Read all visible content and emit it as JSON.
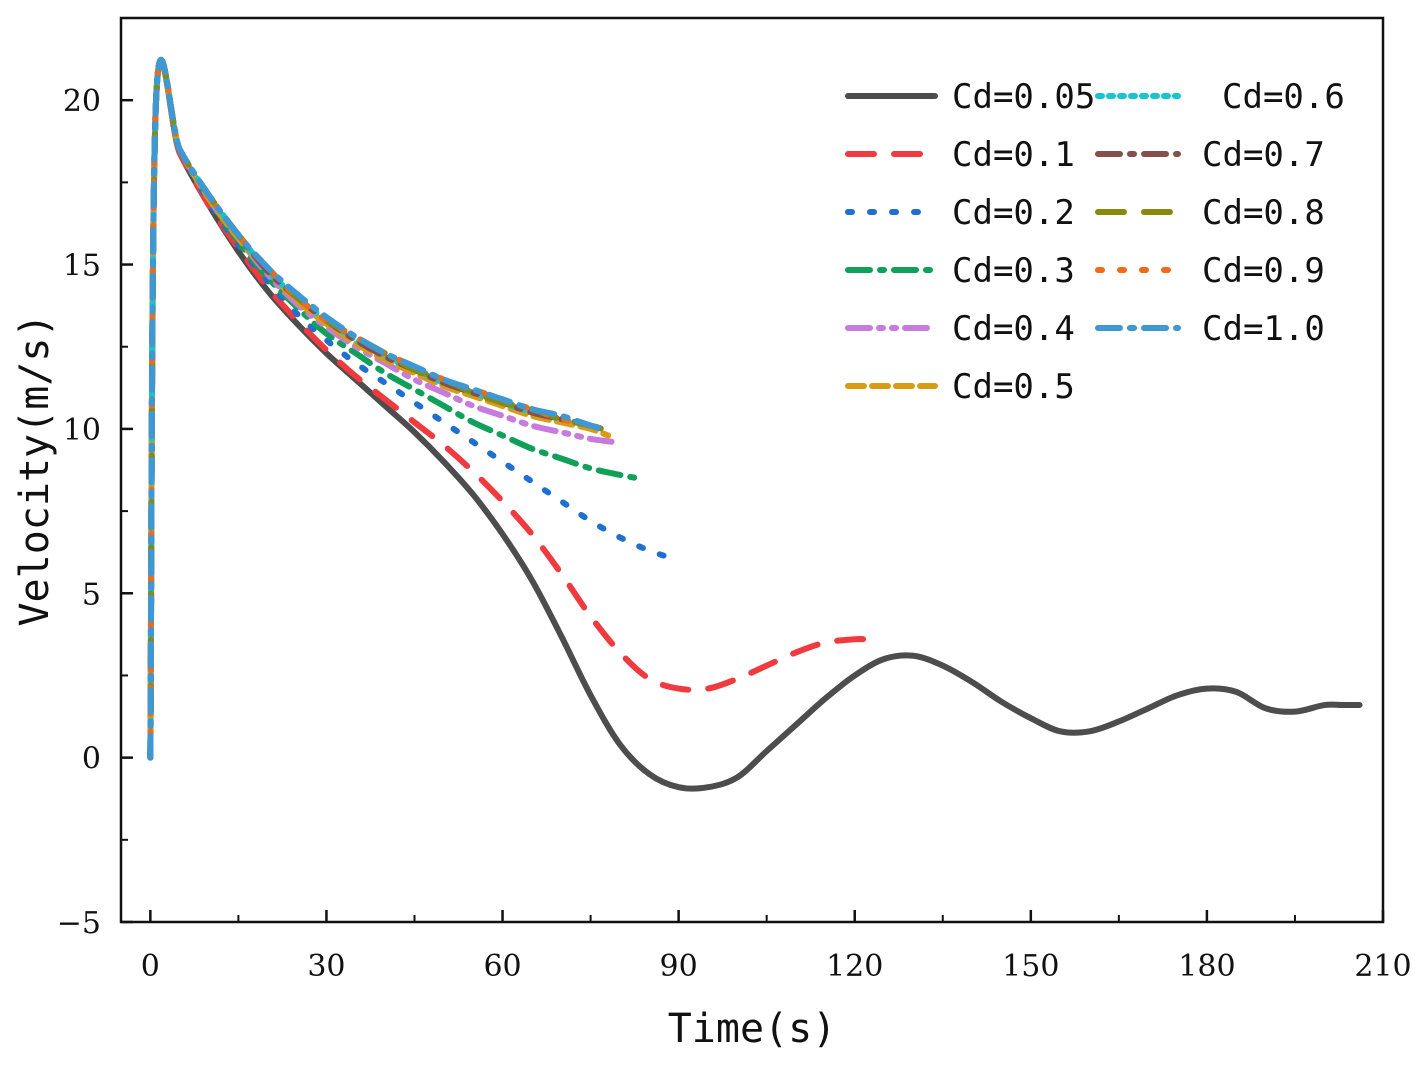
{
  "chart_data": {
    "type": "line",
    "title": "",
    "xlabel": "Time(s)",
    "ylabel": "Velocity(m/s)",
    "xlim": [
      -5,
      210
    ],
    "ylim": [
      -5,
      22.5
    ],
    "xticks": [
      0,
      30,
      60,
      90,
      120,
      150,
      180,
      210
    ],
    "xtick_labels": [
      "0",
      "30",
      "60",
      "90",
      "120",
      "150",
      "180",
      "210"
    ],
    "yticks": [
      -5,
      0,
      5,
      10,
      15,
      20
    ],
    "ytick_labels": [
      "−5",
      "0",
      "5",
      "10",
      "15",
      "20"
    ],
    "grid": false,
    "legend_position": "top-right",
    "series": [
      {
        "name": "Cd=0.05",
        "color": "#4d4d4d",
        "dash": "solid",
        "x": [
          0,
          1,
          5,
          10,
          15,
          20,
          25,
          30,
          35,
          40,
          45,
          50,
          55,
          60,
          65,
          70,
          75,
          80,
          85,
          90,
          95,
          100,
          105,
          110,
          115,
          120,
          125,
          130,
          135,
          140,
          145,
          150,
          155,
          160,
          165,
          170,
          175,
          180,
          185,
          190,
          195,
          200,
          203,
          206
        ],
        "y": [
          0,
          20.1,
          18.4,
          16.8,
          15.4,
          14.2,
          13.2,
          12.3,
          11.5,
          10.7,
          9.9,
          9.0,
          8.0,
          6.8,
          5.4,
          3.7,
          1.9,
          0.4,
          -0.5,
          -0.9,
          -0.9,
          -0.6,
          0.2,
          1.0,
          1.8,
          2.5,
          3.0,
          3.1,
          2.8,
          2.3,
          1.7,
          1.2,
          0.8,
          0.8,
          1.1,
          1.5,
          1.9,
          2.1,
          2.0,
          1.5,
          1.4,
          1.6,
          1.6,
          1.6
        ]
      },
      {
        "name": "Cd=0.1",
        "color": "#ef3b3f",
        "dash": "long",
        "x": [
          0,
          1,
          5,
          10,
          15,
          20,
          25,
          30,
          35,
          40,
          45,
          50,
          55,
          60,
          65,
          70,
          75,
          80,
          85,
          90,
          95,
          100,
          105,
          110,
          115,
          120,
          122
        ],
        "y": [
          0,
          20.1,
          18.4,
          16.8,
          15.5,
          14.3,
          13.3,
          12.4,
          11.6,
          10.9,
          10.2,
          9.5,
          8.7,
          7.8,
          6.8,
          5.6,
          4.3,
          3.2,
          2.4,
          2.1,
          2.1,
          2.4,
          2.8,
          3.2,
          3.5,
          3.6,
          3.6
        ]
      },
      {
        "name": "Cd=0.2",
        "color": "#1f6fd1",
        "dash": "dotbig",
        "x": [
          0,
          1,
          5,
          10,
          15,
          20,
          25,
          30,
          35,
          40,
          45,
          50,
          55,
          60,
          65,
          70,
          75,
          80,
          85,
          90
        ],
        "y": [
          0,
          20.1,
          18.5,
          16.9,
          15.6,
          14.5,
          13.5,
          12.7,
          12.0,
          11.4,
          10.8,
          10.2,
          9.6,
          9.0,
          8.4,
          7.8,
          7.2,
          6.7,
          6.3,
          6.0
        ]
      },
      {
        "name": "Cd=0.3",
        "color": "#10a05a",
        "dash": "dashdot",
        "x": [
          0,
          1,
          5,
          10,
          15,
          20,
          25,
          30,
          35,
          40,
          45,
          50,
          55,
          60,
          65,
          70,
          75,
          80,
          83
        ],
        "y": [
          0,
          20.1,
          18.5,
          17.0,
          15.7,
          14.6,
          13.7,
          12.9,
          12.3,
          11.7,
          11.2,
          10.7,
          10.2,
          9.8,
          9.4,
          9.1,
          8.8,
          8.6,
          8.5
        ]
      },
      {
        "name": "Cd=0.4",
        "color": "#c77bdf",
        "dash": "dashdotdot",
        "x": [
          0,
          1,
          5,
          10,
          15,
          20,
          25,
          30,
          35,
          40,
          45,
          50,
          55,
          60,
          65,
          70,
          75,
          79
        ],
        "y": [
          0,
          20.1,
          18.5,
          17.0,
          15.8,
          14.7,
          13.8,
          13.1,
          12.5,
          12.0,
          11.5,
          11.1,
          10.7,
          10.4,
          10.1,
          9.9,
          9.7,
          9.6
        ]
      },
      {
        "name": "Cd=0.5",
        "color": "#d99b14",
        "dash": "short",
        "x": [
          0,
          1,
          5,
          10,
          15,
          20,
          25,
          30,
          35,
          40,
          45,
          50,
          55,
          60,
          65,
          70,
          75,
          78
        ],
        "y": [
          0,
          20.1,
          18.5,
          17.0,
          15.8,
          14.8,
          13.9,
          13.2,
          12.6,
          12.1,
          11.7,
          11.3,
          11.0,
          10.7,
          10.4,
          10.2,
          10.0,
          9.8
        ]
      },
      {
        "name": "Cd=0.6",
        "color": "#17c4cf",
        "dash": "dotted",
        "x": [
          0,
          1,
          5,
          10,
          15,
          20,
          25,
          30,
          35,
          40,
          45,
          50,
          55,
          60,
          65,
          70,
          75,
          77
        ],
        "y": [
          0,
          20.1,
          18.5,
          17.1,
          15.9,
          14.8,
          14.0,
          13.3,
          12.7,
          12.2,
          11.8,
          11.4,
          11.1,
          10.8,
          10.5,
          10.3,
          10.1,
          10.0
        ]
      },
      {
        "name": "Cd=0.7",
        "color": "#86504a",
        "dash": "dashdot",
        "x": [
          0,
          1,
          5,
          10,
          15,
          20,
          25,
          30,
          35,
          40,
          45,
          50,
          55,
          60,
          65,
          70,
          75,
          77
        ],
        "y": [
          0,
          20.1,
          18.5,
          17.1,
          15.9,
          14.8,
          14.0,
          13.3,
          12.7,
          12.2,
          11.8,
          11.4,
          11.1,
          10.8,
          10.5,
          10.3,
          10.1,
          10.0
        ]
      },
      {
        "name": "Cd=0.8",
        "color": "#888a0c",
        "dash": "long",
        "x": [
          0,
          1,
          5,
          10,
          15,
          20,
          25,
          30,
          35,
          40,
          45,
          50,
          55,
          60,
          65,
          70,
          75,
          77
        ],
        "y": [
          0,
          20.1,
          18.5,
          17.1,
          15.9,
          14.9,
          14.0,
          13.3,
          12.8,
          12.3,
          11.8,
          11.5,
          11.1,
          10.8,
          10.6,
          10.3,
          10.1,
          10.0
        ]
      },
      {
        "name": "Cd=0.9",
        "color": "#f06a1a",
        "dash": "dotbig",
        "x": [
          0,
          1,
          5,
          10,
          15,
          20,
          25,
          30,
          35,
          40,
          45,
          50,
          55,
          60,
          65,
          70,
          75,
          77
        ],
        "y": [
          0,
          20.1,
          18.5,
          17.1,
          15.9,
          14.9,
          14.0,
          13.3,
          12.8,
          12.3,
          11.9,
          11.5,
          11.2,
          10.9,
          10.6,
          10.3,
          10.1,
          10.0
        ]
      },
      {
        "name": "Cd=1.0",
        "color": "#3d98d4",
        "dash": "dashdot",
        "x": [
          0,
          1,
          5,
          10,
          15,
          20,
          25,
          30,
          35,
          40,
          45,
          50,
          55,
          60,
          65,
          70,
          75,
          77
        ],
        "y": [
          0,
          20.1,
          18.5,
          17.1,
          15.9,
          14.9,
          14.1,
          13.4,
          12.8,
          12.3,
          11.9,
          11.5,
          11.2,
          10.9,
          10.6,
          10.4,
          10.1,
          10.0
        ]
      }
    ]
  }
}
